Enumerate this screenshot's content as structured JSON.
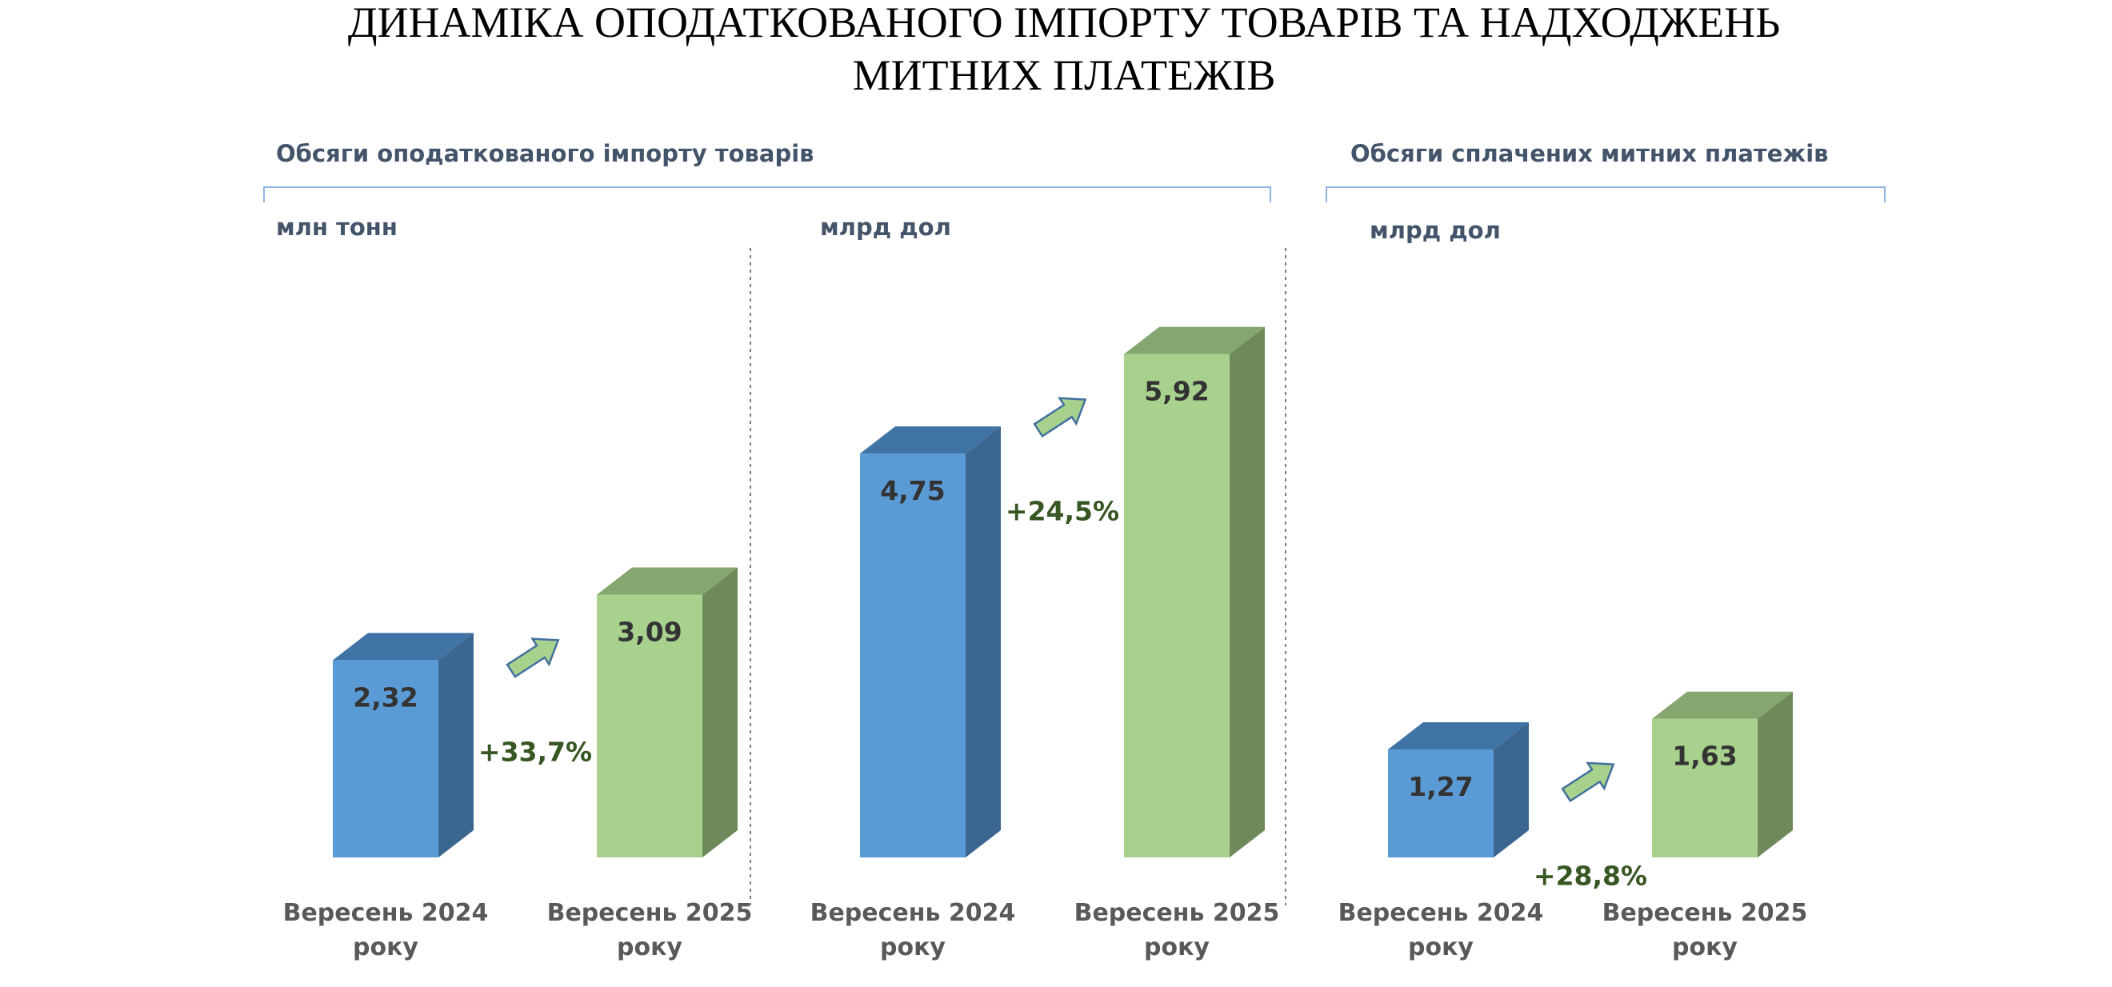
{
  "title_line1": "ДИНАМІКА ОПОДАТКОВАНОГО ІМПОРТУ ТОВАРІВ ТА НАДХОДЖЕНЬ",
  "title_line2": "МИТНИХ ПЛАТЕЖІВ",
  "section_left": "Обсяги оподаткованого імпорту товарів",
  "section_right": "Обсяги сплачених митних платежів",
  "colors": {
    "blue_front": "#5b9bd5",
    "blue_top": "#4174a6",
    "blue_side": "#3a6690",
    "green_front": "#a9d18e",
    "green_top": "#86a670",
    "green_side": "#6e8a5b",
    "arrow_fill": "#a9d18e",
    "arrow_stroke": "#41719c"
  },
  "chart_data": [
    {
      "type": "bar",
      "unit": "млн тонн",
      "categories": [
        "Вересень 2024 року",
        "Вересень 2025 року"
      ],
      "values": [
        2.32,
        3.09
      ],
      "value_labels": [
        "2,32",
        "3,09"
      ],
      "change_label": "+33,7%"
    },
    {
      "type": "bar",
      "unit": "млрд дол",
      "categories": [
        "Вересень 2024 року",
        "Вересень 2025 року"
      ],
      "values": [
        4.75,
        5.92
      ],
      "value_labels": [
        "4,75",
        "5,92"
      ],
      "change_label": "+24,5%"
    },
    {
      "type": "bar",
      "unit": "млрд дол",
      "categories": [
        "Вересень 2024 року",
        "Вересень 2025 року"
      ],
      "values": [
        1.27,
        1.63
      ],
      "value_labels": [
        "1,27",
        "1,63"
      ],
      "change_label": "+28,8%"
    }
  ]
}
